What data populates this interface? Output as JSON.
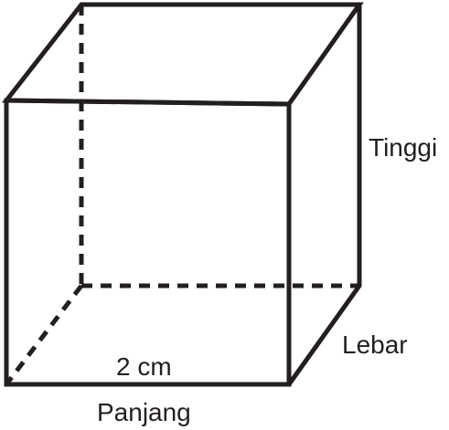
{
  "diagram": {
    "labels": {
      "height": "Tinggi",
      "width": "Lebar",
      "length": "Panjang",
      "measure": "2 cm"
    },
    "line_color": "#231f20"
  }
}
